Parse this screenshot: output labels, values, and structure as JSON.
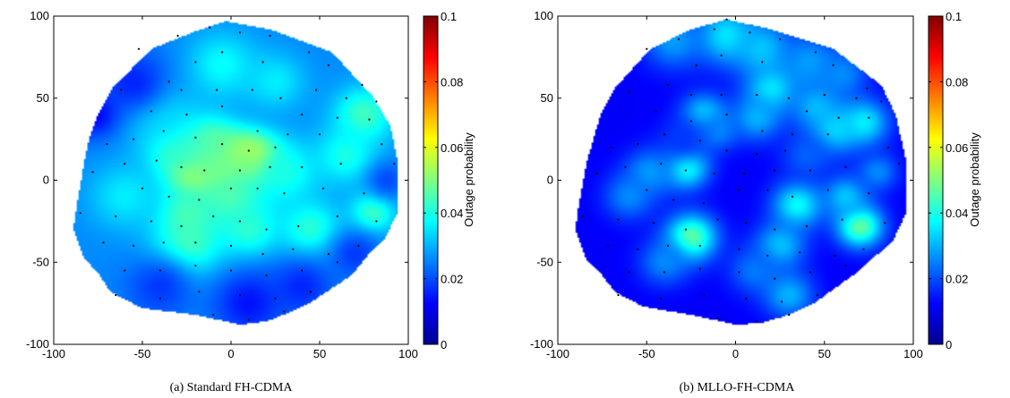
{
  "chart_data": [
    {
      "type": "heatmap",
      "caption": "(a)  Standard FH-CDMA",
      "xlim": [
        -100,
        100
      ],
      "ylim": [
        -100,
        100
      ],
      "xticks": [
        -100,
        -50,
        0,
        50,
        100
      ],
      "yticks": [
        -100,
        -50,
        0,
        50,
        100
      ],
      "colorbar": {
        "label": "Outage probability",
        "range": [
          0,
          0.1
        ],
        "ticks": [
          "0",
          "0.02",
          "0.04",
          "0.06",
          "0.08",
          "0.1"
        ],
        "colormap": "jet"
      },
      "boundary": [
        [
          -3,
          97
        ],
        [
          22,
          92
        ],
        [
          57,
          78
        ],
        [
          80,
          51
        ],
        [
          90,
          33
        ],
        [
          94,
          11
        ],
        [
          94,
          -20
        ],
        [
          86,
          -37
        ],
        [
          80,
          -42
        ],
        [
          68,
          -58
        ],
        [
          44,
          -75
        ],
        [
          32,
          -81
        ],
        [
          20,
          -86
        ],
        [
          5,
          -88
        ],
        [
          -20,
          -82
        ],
        [
          -50,
          -78
        ],
        [
          -68,
          -68
        ],
        [
          -74,
          -58
        ],
        [
          -83,
          -47
        ],
        [
          -89,
          -30
        ],
        [
          -88,
          -22
        ],
        [
          -83,
          10
        ],
        [
          -80,
          25
        ],
        [
          -76,
          38
        ],
        [
          -67,
          56
        ],
        [
          -45,
          80
        ],
        [
          -22,
          90
        ]
      ],
      "background_value": 0.026,
      "hotspots": [
        {
          "x": 14,
          "y": 13,
          "value": 0.066,
          "radius": 10
        },
        {
          "x": 3,
          "y": 14,
          "value": 0.06,
          "radius": 10
        },
        {
          "x": -20,
          "y": 6,
          "value": 0.068,
          "radius": 11
        },
        {
          "x": -8,
          "y": 8,
          "value": 0.055,
          "radius": 10
        },
        {
          "x": -12,
          "y": 22,
          "value": 0.048,
          "radius": 12
        },
        {
          "x": -30,
          "y": 18,
          "value": 0.044,
          "radius": 13
        },
        {
          "x": 0,
          "y": -10,
          "value": 0.046,
          "radius": 14
        },
        {
          "x": -25,
          "y": -20,
          "value": 0.044,
          "radius": 12
        },
        {
          "x": -25,
          "y": -40,
          "value": 0.046,
          "radius": 14
        },
        {
          "x": 10,
          "y": -30,
          "value": 0.042,
          "radius": 12
        },
        {
          "x": 30,
          "y": 5,
          "value": 0.04,
          "radius": 14
        },
        {
          "x": 45,
          "y": -30,
          "value": 0.042,
          "radius": 12
        },
        {
          "x": 75,
          "y": 40,
          "value": 0.044,
          "radius": 12
        },
        {
          "x": 65,
          "y": 15,
          "value": 0.04,
          "radius": 12
        },
        {
          "x": 80,
          "y": -20,
          "value": 0.044,
          "radius": 9
        },
        {
          "x": -5,
          "y": 70,
          "value": 0.038,
          "radius": 14
        },
        {
          "x": 25,
          "y": 60,
          "value": 0.036,
          "radius": 12
        },
        {
          "x": -40,
          "y": 40,
          "value": 0.036,
          "radius": 14
        },
        {
          "x": -60,
          "y": -10,
          "value": 0.036,
          "radius": 14
        },
        {
          "x": -55,
          "y": 60,
          "value": 0.016,
          "radius": 14
        },
        {
          "x": -78,
          "y": 40,
          "value": 0.012,
          "radius": 10
        },
        {
          "x": 10,
          "y": -75,
          "value": 0.014,
          "radius": 14
        },
        {
          "x": -40,
          "y": -65,
          "value": 0.018,
          "radius": 14
        },
        {
          "x": 40,
          "y": -65,
          "value": 0.016,
          "radius": 12
        },
        {
          "x": 70,
          "y": -45,
          "value": 0.018,
          "radius": 10
        },
        {
          "x": 88,
          "y": 0,
          "value": 0.02,
          "radius": 8
        }
      ],
      "points": [
        [
          -52,
          80
        ],
        [
          -30,
          88
        ],
        [
          -12,
          93
        ],
        [
          5,
          90
        ],
        [
          22,
          88
        ],
        [
          44,
          78
        ],
        [
          -5,
          78
        ],
        [
          18,
          72
        ],
        [
          -20,
          72
        ],
        [
          55,
          70
        ],
        [
          74,
          58
        ],
        [
          -62,
          55
        ],
        [
          -35,
          60
        ],
        [
          -28,
          55
        ],
        [
          -8,
          55
        ],
        [
          12,
          55
        ],
        [
          28,
          50
        ],
        [
          48,
          55
        ],
        [
          65,
          50
        ],
        [
          82,
          48
        ],
        [
          78,
          37
        ],
        [
          60,
          38
        ],
        [
          40,
          40
        ],
        [
          -45,
          42
        ],
        [
          -25,
          40
        ],
        [
          -5,
          45
        ],
        [
          15,
          30
        ],
        [
          32,
          28
        ],
        [
          50,
          28
        ],
        [
          85,
          22
        ],
        [
          -70,
          22
        ],
        [
          -55,
          25
        ],
        [
          -38,
          30
        ],
        [
          -20,
          26
        ],
        [
          -5,
          22
        ],
        [
          10,
          18
        ],
        [
          25,
          20
        ],
        [
          -60,
          10
        ],
        [
          -42,
          12
        ],
        [
          -28,
          8
        ],
        [
          -15,
          6
        ],
        [
          5,
          6
        ],
        [
          22,
          8
        ],
        [
          40,
          8
        ],
        [
          62,
          10
        ],
        [
          92,
          10
        ],
        [
          -78,
          5
        ],
        [
          -50,
          -5
        ],
        [
          -35,
          -10
        ],
        [
          -18,
          -12
        ],
        [
          0,
          -5
        ],
        [
          15,
          -5
        ],
        [
          30,
          -8
        ],
        [
          52,
          -5
        ],
        [
          75,
          -8
        ],
        [
          -85,
          -20
        ],
        [
          -65,
          -22
        ],
        [
          -45,
          -25
        ],
        [
          -28,
          -28
        ],
        [
          -10,
          -22
        ],
        [
          5,
          -25
        ],
        [
          20,
          -30
        ],
        [
          38,
          -28
        ],
        [
          60,
          -22
        ],
        [
          82,
          -25
        ],
        [
          -72,
          -38
        ],
        [
          -55,
          -40
        ],
        [
          -38,
          -38
        ],
        [
          -20,
          -38
        ],
        [
          0,
          -40
        ],
        [
          18,
          -45
        ],
        [
          35,
          -42
        ],
        [
          55,
          -45
        ],
        [
          72,
          -40
        ],
        [
          -60,
          -55
        ],
        [
          -40,
          -55
        ],
        [
          -20,
          -52
        ],
        [
          0,
          -55
        ],
        [
          20,
          -58
        ],
        [
          40,
          -55
        ],
        [
          60,
          -50
        ],
        [
          -65,
          -70
        ],
        [
          -40,
          -72
        ],
        [
          -18,
          -68
        ],
        [
          5,
          -70
        ],
        [
          25,
          -72
        ],
        [
          45,
          -68
        ],
        [
          -10,
          -82
        ],
        [
          10,
          -85
        ],
        [
          30,
          -80
        ]
      ]
    },
    {
      "type": "heatmap",
      "caption": "(b)  MLLO-FH-CDMA",
      "xlim": [
        -100,
        100
      ],
      "ylim": [
        -100,
        100
      ],
      "xticks": [
        -100,
        -50,
        0,
        50,
        100
      ],
      "yticks": [
        -100,
        -50,
        0,
        50,
        100
      ],
      "colorbar": {
        "label": "Outage probability",
        "range": [
          0,
          0.1
        ],
        "ticks": [
          "0",
          "0.02",
          "0.04",
          "0.06",
          "0.08",
          "0.1"
        ],
        "colormap": "jet"
      },
      "boundary": [
        [
          -5,
          98
        ],
        [
          20,
          92
        ],
        [
          55,
          80
        ],
        [
          82,
          58
        ],
        [
          90,
          40
        ],
        [
          96,
          12
        ],
        [
          96,
          -20
        ],
        [
          88,
          -38
        ],
        [
          80,
          -45
        ],
        [
          66,
          -58
        ],
        [
          44,
          -75
        ],
        [
          30,
          -82
        ],
        [
          15,
          -87
        ],
        [
          0,
          -88
        ],
        [
          -25,
          -82
        ],
        [
          -52,
          -77
        ],
        [
          -68,
          -68
        ],
        [
          -75,
          -58
        ],
        [
          -84,
          -48
        ],
        [
          -90,
          -30
        ],
        [
          -89,
          -20
        ],
        [
          -84,
          10
        ],
        [
          -80,
          25
        ],
        [
          -76,
          40
        ],
        [
          -68,
          56
        ],
        [
          -48,
          80
        ],
        [
          -25,
          92
        ]
      ],
      "background_value": 0.012,
      "hotspots": [
        {
          "x": -5,
          "y": 88,
          "value": 0.036,
          "radius": 12
        },
        {
          "x": 15,
          "y": 80,
          "value": 0.032,
          "radius": 12
        },
        {
          "x": -35,
          "y": 85,
          "value": 0.028,
          "radius": 12
        },
        {
          "x": 42,
          "y": 72,
          "value": 0.028,
          "radius": 12
        },
        {
          "x": 60,
          "y": 65,
          "value": 0.026,
          "radius": 10
        },
        {
          "x": 20,
          "y": 55,
          "value": 0.036,
          "radius": 10
        },
        {
          "x": 12,
          "y": 38,
          "value": 0.03,
          "radius": 10
        },
        {
          "x": 45,
          "y": 45,
          "value": 0.03,
          "radius": 10
        },
        {
          "x": 55,
          "y": 30,
          "value": 0.034,
          "radius": 10
        },
        {
          "x": 72,
          "y": 35,
          "value": 0.036,
          "radius": 10
        },
        {
          "x": -18,
          "y": 40,
          "value": 0.034,
          "radius": 9
        },
        {
          "x": -10,
          "y": 30,
          "value": 0.026,
          "radius": 8
        },
        {
          "x": -28,
          "y": 8,
          "value": 0.042,
          "radius": 9
        },
        {
          "x": -48,
          "y": 5,
          "value": 0.028,
          "radius": 10
        },
        {
          "x": -60,
          "y": -10,
          "value": 0.026,
          "radius": 10
        },
        {
          "x": -25,
          "y": -35,
          "value": 0.048,
          "radius": 10
        },
        {
          "x": -40,
          "y": -50,
          "value": 0.026,
          "radius": 10
        },
        {
          "x": 35,
          "y": -15,
          "value": 0.038,
          "radius": 10
        },
        {
          "x": 25,
          "y": -40,
          "value": 0.032,
          "radius": 10
        },
        {
          "x": 10,
          "y": -55,
          "value": 0.024,
          "radius": 10
        },
        {
          "x": 70,
          "y": -28,
          "value": 0.048,
          "radius": 9
        },
        {
          "x": 62,
          "y": -10,
          "value": 0.032,
          "radius": 9
        },
        {
          "x": 80,
          "y": 5,
          "value": 0.026,
          "radius": 8
        },
        {
          "x": 30,
          "y": -70,
          "value": 0.03,
          "radius": 10
        },
        {
          "x": -30,
          "y": 25,
          "value": 0.018,
          "radius": 10
        },
        {
          "x": 40,
          "y": 15,
          "value": 0.022,
          "radius": 10
        }
      ],
      "points": [
        [
          -50,
          80
        ],
        [
          -32,
          86
        ],
        [
          -12,
          92
        ],
        [
          -5,
          98
        ],
        [
          8,
          90
        ],
        [
          25,
          86
        ],
        [
          45,
          78
        ],
        [
          -8,
          76
        ],
        [
          15,
          72
        ],
        [
          -22,
          70
        ],
        [
          55,
          70
        ],
        [
          74,
          56
        ],
        [
          -60,
          54
        ],
        [
          -38,
          58
        ],
        [
          -25,
          52
        ],
        [
          -8,
          52
        ],
        [
          12,
          52
        ],
        [
          30,
          50
        ],
        [
          50,
          52
        ],
        [
          68,
          50
        ],
        [
          82,
          48
        ],
        [
          75,
          38
        ],
        [
          58,
          38
        ],
        [
          40,
          42
        ],
        [
          -45,
          42
        ],
        [
          -25,
          36
        ],
        [
          -5,
          40
        ],
        [
          15,
          30
        ],
        [
          32,
          28
        ],
        [
          52,
          28
        ],
        [
          86,
          20
        ],
        [
          -70,
          20
        ],
        [
          -55,
          22
        ],
        [
          -40,
          28
        ],
        [
          -20,
          24
        ],
        [
          -5,
          18
        ],
        [
          12,
          16
        ],
        [
          28,
          18
        ],
        [
          -62,
          8
        ],
        [
          -42,
          10
        ],
        [
          -28,
          6
        ],
        [
          -12,
          4
        ],
        [
          5,
          4
        ],
        [
          22,
          6
        ],
        [
          42,
          6
        ],
        [
          62,
          8
        ],
        [
          92,
          10
        ],
        [
          -78,
          4
        ],
        [
          -50,
          -6
        ],
        [
          -35,
          -12
        ],
        [
          -18,
          -14
        ],
        [
          2,
          -6
        ],
        [
          18,
          -6
        ],
        [
          32,
          -10
        ],
        [
          52,
          -6
        ],
        [
          75,
          -8
        ],
        [
          -86,
          -22
        ],
        [
          -66,
          -24
        ],
        [
          -46,
          -26
        ],
        [
          -28,
          -30
        ],
        [
          -10,
          -24
        ],
        [
          6,
          -26
        ],
        [
          22,
          -30
        ],
        [
          40,
          -28
        ],
        [
          60,
          -24
        ],
        [
          84,
          -26
        ],
        [
          -72,
          -40
        ],
        [
          -55,
          -42
        ],
        [
          -38,
          -40
        ],
        [
          -20,
          -40
        ],
        [
          2,
          -42
        ],
        [
          18,
          -46
        ],
        [
          36,
          -44
        ],
        [
          56,
          -46
        ],
        [
          72,
          -42
        ],
        [
          -60,
          -56
        ],
        [
          -40,
          -56
        ],
        [
          -20,
          -54
        ],
        [
          2,
          -56
        ],
        [
          22,
          -60
        ],
        [
          42,
          -56
        ],
        [
          62,
          -52
        ],
        [
          -66,
          -70
        ],
        [
          -42,
          -72
        ],
        [
          -18,
          -70
        ],
        [
          6,
          -72
        ],
        [
          26,
          -74
        ],
        [
          46,
          -70
        ],
        [
          -10,
          -84
        ],
        [
          12,
          -86
        ],
        [
          30,
          -82
        ]
      ]
    }
  ]
}
